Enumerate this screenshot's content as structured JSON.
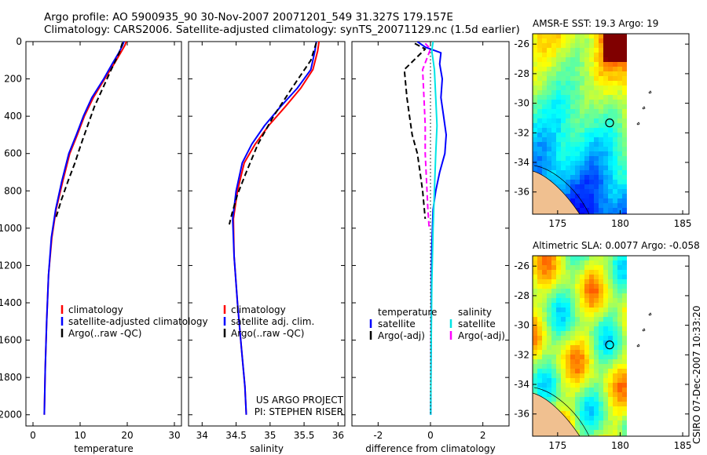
{
  "header": {
    "line1": "Argo profile: AO 5900935_90 30-Nov-2007 20071201_549 31.327S 179.157E",
    "line2": "Climatology: CARS2006. Satellite-adjusted climatology: synTS_20071129.nc (1.5d earlier)"
  },
  "side_label": "CSIRO 07-Dec-2007 10:33:20",
  "colors": {
    "red": "#ff0000",
    "blue": "#0000ff",
    "black": "#000000",
    "cyan": "#00e5e5",
    "magenta": "#ff00ff"
  },
  "chart_data": [
    {
      "type": "line",
      "xlabel": "temperature",
      "ylabel": "",
      "xlim": [
        -1.5,
        31.5
      ],
      "ylim": [
        0,
        2060
      ],
      "y_inverted": true,
      "xticks": [
        0,
        10,
        20,
        30
      ],
      "yticks": [
        0,
        200,
        400,
        600,
        800,
        1000,
        1200,
        1400,
        1600,
        1800,
        2000
      ],
      "legend": {
        "position": "lower-middle",
        "entries": [
          {
            "label": "climatology",
            "color": "#ff0000"
          },
          {
            "label": "satellite-adjusted climatology",
            "color": "#0000ff"
          },
          {
            "label": "Argo(..raw -QC)",
            "color": "#000000"
          }
        ]
      },
      "series": [
        {
          "color": "#ff0000",
          "style": "solid",
          "x": [
            19.8,
            19.5,
            18.6,
            17.2,
            15.2,
            12.8,
            10.9,
            9.4,
            7.8,
            6.3,
            4.9,
            4.0,
            3.3,
            2.9,
            2.6,
            2.4
          ],
          "y": [
            0,
            20,
            60,
            120,
            200,
            300,
            400,
            500,
            600,
            750,
            900,
            1050,
            1250,
            1500,
            1750,
            2000
          ]
        },
        {
          "color": "#0000ff",
          "style": "solid",
          "x": [
            19.3,
            19.0,
            18.2,
            16.8,
            15.0,
            12.5,
            10.7,
            9.2,
            7.6,
            6.1,
            4.8,
            3.9,
            3.3,
            2.9,
            2.6,
            2.4
          ],
          "y": [
            0,
            20,
            60,
            120,
            200,
            300,
            400,
            500,
            600,
            750,
            900,
            1050,
            1250,
            1500,
            1750,
            2000
          ]
        },
        {
          "color": "#000000",
          "style": "dashed",
          "x": [
            19.0,
            18.3,
            16.6,
            14.8,
            13.0,
            11.6,
            10.2,
            8.9,
            7.4,
            6.0,
            4.8
          ],
          "y": [
            5,
            60,
            150,
            250,
            350,
            450,
            550,
            650,
            750,
            850,
            950
          ]
        }
      ]
    },
    {
      "type": "line",
      "xlabel": "salinity",
      "ylabel": "",
      "xlim": [
        33.8,
        36.1
      ],
      "ylim": [
        0,
        2060
      ],
      "y_inverted": true,
      "xticks": [
        34,
        34.5,
        35,
        35.5,
        36
      ],
      "legend": {
        "position": "lower-middle",
        "entries": [
          {
            "label": "climatology",
            "color": "#ff0000"
          },
          {
            "label": "satellite adj. clim.",
            "color": "#0000ff"
          },
          {
            "label": "Argo(..raw -QC)",
            "color": "#000000"
          }
        ]
      },
      "annotation": {
        "line1": "US ARGO PROJECT",
        "line2": "PI: STEPHEN RISER"
      },
      "series": [
        {
          "color": "#ff0000",
          "style": "solid",
          "x": [
            35.72,
            35.7,
            35.63,
            35.45,
            35.22,
            34.98,
            34.78,
            34.62,
            34.52,
            34.46,
            34.47,
            34.52,
            34.58,
            34.63,
            34.65
          ],
          "y": [
            0,
            50,
            150,
            250,
            350,
            450,
            550,
            650,
            800,
            950,
            1150,
            1400,
            1650,
            1850,
            2000
          ]
        },
        {
          "color": "#0000ff",
          "style": "solid",
          "x": [
            35.68,
            35.66,
            35.6,
            35.4,
            35.15,
            34.92,
            34.73,
            34.59,
            34.5,
            34.45,
            34.47,
            34.52,
            34.58,
            34.63,
            34.65
          ],
          "y": [
            0,
            50,
            150,
            250,
            350,
            450,
            550,
            650,
            800,
            950,
            1150,
            1400,
            1650,
            1850,
            2000
          ]
        },
        {
          "color": "#000000",
          "style": "dashed",
          "x": [
            35.68,
            35.6,
            35.32,
            35.05,
            34.82,
            34.65,
            34.52,
            34.44,
            34.4
          ],
          "y": [
            5,
            100,
            250,
            400,
            550,
            700,
            820,
            920,
            980
          ]
        }
      ]
    },
    {
      "type": "line",
      "xlabel": "difference from climatology",
      "ylabel": "",
      "xlim": [
        -3,
        3
      ],
      "ylim": [
        0,
        2060
      ],
      "y_inverted": true,
      "xticks": [
        -2,
        0,
        2
      ],
      "legend": {
        "position": "lower-middle",
        "entries": [
          {
            "group": "temperature",
            "label": "satellite",
            "color": "#0000ff"
          },
          {
            "group": "temperature",
            "label": "Argo(-adj)",
            "color": "#000000"
          },
          {
            "group": "salinity",
            "label": "satellite",
            "color": "#00e5e5"
          },
          {
            "group": "salinity",
            "label": "Argo(-adj)",
            "color": "#ff00ff"
          }
        ]
      },
      "series": [
        {
          "color": "#0000ff",
          "style": "solid",
          "x": [
            -0.5,
            -0.2,
            0.4,
            0.35,
            0.45,
            0.4,
            0.5,
            0.6,
            0.55,
            0.35,
            0.2,
            0.1,
            0.05,
            0.03,
            0.02,
            0.01
          ],
          "y": [
            0,
            30,
            60,
            120,
            200,
            300,
            400,
            500,
            600,
            700,
            800,
            900,
            1100,
            1400,
            1700,
            2000
          ]
        },
        {
          "color": "#00e5e5",
          "style": "solid",
          "x": [
            0.1,
            0.05,
            0.15,
            0.2,
            0.25,
            0.2,
            0.15,
            0.1,
            0.05,
            0.02,
            0.01
          ],
          "y": [
            0,
            50,
            150,
            300,
            450,
            600,
            800,
            1000,
            1300,
            1700,
            2000
          ]
        },
        {
          "color": "#000000",
          "style": "dashed",
          "x": [
            -0.6,
            -0.2,
            -1.0,
            -0.9,
            -0.8,
            -0.7,
            -0.5,
            -0.4,
            -0.3,
            -0.2
          ],
          "y": [
            10,
            40,
            150,
            300,
            400,
            500,
            600,
            700,
            800,
            950
          ]
        },
        {
          "color": "#ff00ff",
          "style": "dashed",
          "x": [
            -0.2,
            0.0,
            -0.3,
            -0.25,
            -0.2,
            -0.2,
            -0.15,
            -0.1,
            -0.05
          ],
          "y": [
            10,
            40,
            150,
            300,
            450,
            600,
            750,
            900,
            1000
          ]
        },
        {
          "color": "#000000",
          "style": "dotted",
          "x": [
            0,
            0
          ],
          "y": [
            0,
            2000
          ]
        }
      ]
    },
    {
      "type": "heatmap",
      "title": "AMSR-E SST: 19.3 Argo: 19",
      "xlim": [
        173,
        185.5
      ],
      "ylim": [
        -37.5,
        -25.3
      ],
      "xticks": [
        175,
        180,
        185
      ],
      "yticks": [
        -26,
        -28,
        -30,
        -32,
        -34,
        -36
      ],
      "argo_position": {
        "lon": 179.157,
        "lat": -31.327
      }
    },
    {
      "type": "heatmap",
      "title": "Altimetric SLA: 0.0077 Argo: -0.058",
      "xlim": [
        173,
        185.5
      ],
      "ylim": [
        -37.5,
        -25.3
      ],
      "xticks": [
        175,
        180,
        185
      ],
      "yticks": [
        -26,
        -28,
        -30,
        -32,
        -34,
        -36
      ],
      "argo_position": {
        "lon": 179.157,
        "lat": -31.327
      }
    }
  ]
}
